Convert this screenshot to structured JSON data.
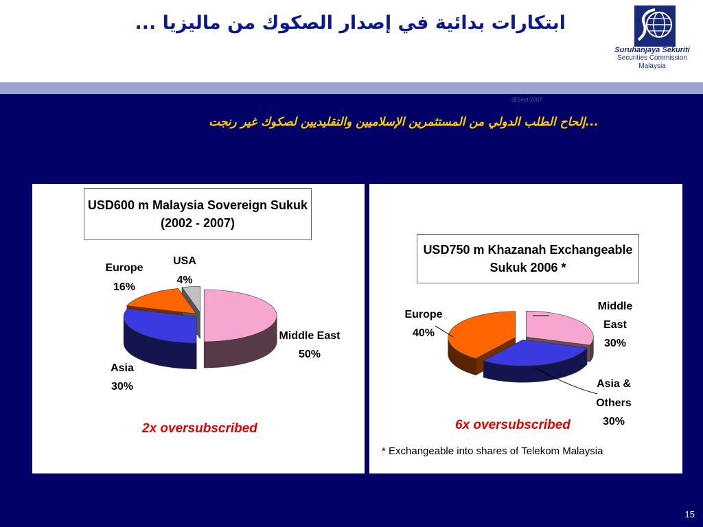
{
  "header": {
    "title": "ابتكارات بدائية في إصدار الصكوك من ماليزيا ...",
    "logo_line1": "Suruhanjaya Sekuriti",
    "logo_line2": "Securities Commission",
    "logo_line3": "Malaysia"
  },
  "date_stamp": "@Sept 2007",
  "subtitle": "...إلحاح الطلب الدولي من المستثمرين الإسلاميين والتقليديين لصكوك غير رنجت",
  "colors": {
    "middle_east": "#f7a6cf",
    "asia": "#3a3ae0",
    "europe": "#ff6600",
    "usa": "#c0c0c0",
    "background": "#000066",
    "subtitle": "#ffcc00",
    "oversubscribed": "#e00000"
  },
  "chart_data": [
    {
      "type": "pie",
      "title": "USD600 m Malaysia Sovereign Sukuk (2002 - 2007)",
      "title_line1": "USD600 m Malaysia Sovereign Sukuk",
      "title_line2": "(2002 - 2007)",
      "slices": [
        {
          "label": "Middle East",
          "value": 50,
          "display": "50%"
        },
        {
          "label": "Asia",
          "value": 30,
          "display": "30%"
        },
        {
          "label": "Europe",
          "value": 16,
          "display": "16%"
        },
        {
          "label": "USA",
          "value": 4,
          "display": "4%"
        }
      ],
      "note": "2x oversubscribed"
    },
    {
      "type": "pie",
      "title": "USD750 m Khazanah Exchangeable Sukuk 2006 *",
      "title_line1": "USD750 m Khazanah Exchangeable",
      "title_line2": "Sukuk 2006 *",
      "slices": [
        {
          "label": "Middle East",
          "label_line1": "Middle",
          "label_line2": "East",
          "value": 30,
          "display": "30%"
        },
        {
          "label": "Asia & Others",
          "label_line1": "Asia &",
          "label_line2": "Others",
          "value": 30,
          "display": "30%"
        },
        {
          "label": "Europe",
          "value": 40,
          "display": "40%"
        }
      ],
      "note": "6x oversubscribed",
      "footnote": "* Exchangeable into shares of Telekom Malaysia"
    }
  ],
  "page_number": "15"
}
